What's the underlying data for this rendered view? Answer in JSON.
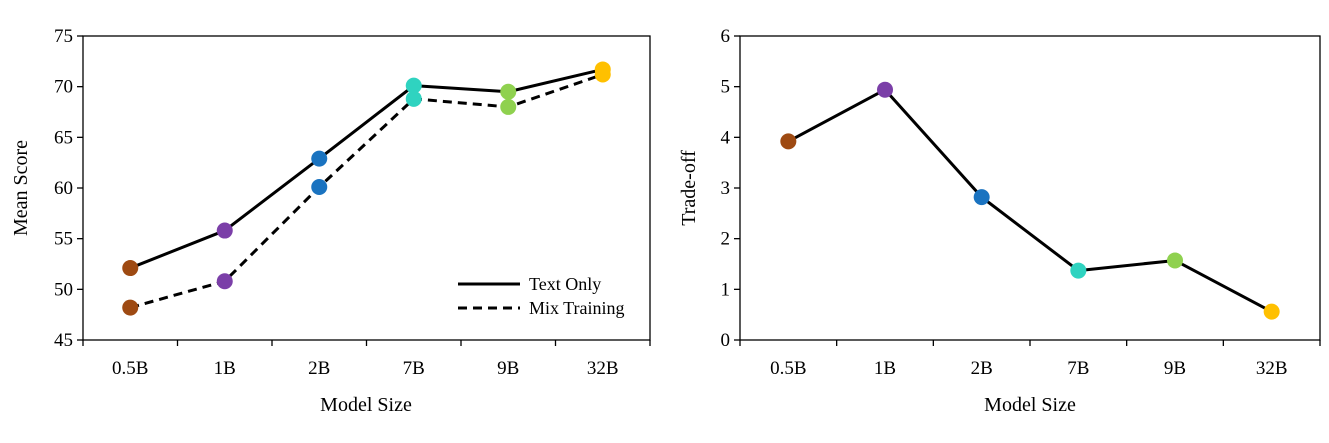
{
  "colors": {
    "0.5B": "#9e4a12",
    "1B": "#7b3fa8",
    "2B": "#1a73c0",
    "7B": "#2fd3c0",
    "9B": "#8fd14f",
    "32B": "#ffc000"
  },
  "chart_data": [
    {
      "type": "line",
      "xlabel": "Model Size",
      "ylabel": "Mean Score",
      "categories": [
        "0.5B",
        "1B",
        "2B",
        "7B",
        "9B",
        "32B"
      ],
      "ylim": [
        45,
        75
      ],
      "yticks": [
        45,
        50,
        55,
        60,
        65,
        70,
        75
      ],
      "grid": false,
      "legend_position": "bottom-right",
      "series": [
        {
          "name": "Text Only",
          "style": "solid",
          "values": [
            52.1,
            55.8,
            62.9,
            70.1,
            69.5,
            71.7
          ]
        },
        {
          "name": "Mix Training",
          "style": "dashed",
          "values": [
            48.2,
            50.8,
            60.1,
            68.8,
            68.0,
            71.2
          ]
        }
      ]
    },
    {
      "type": "line",
      "xlabel": "Model Size",
      "ylabel": "Trade-off",
      "categories": [
        "0.5B",
        "1B",
        "2B",
        "7B",
        "9B",
        "32B"
      ],
      "ylim": [
        0,
        6
      ],
      "yticks": [
        0,
        1,
        2,
        3,
        4,
        5,
        6
      ],
      "grid": false,
      "series": [
        {
          "style": "solid",
          "values": [
            3.92,
            4.94,
            2.82,
            1.37,
            1.57,
            0.56
          ]
        }
      ]
    }
  ]
}
